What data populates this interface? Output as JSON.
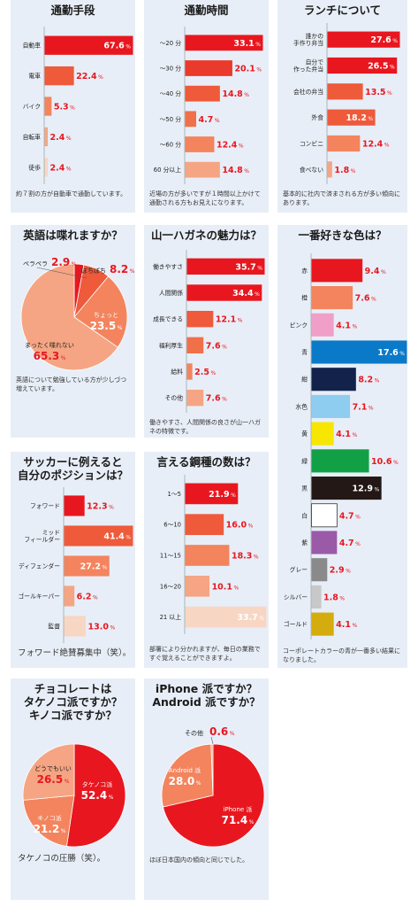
{
  "colors": {
    "background": "#e8eef7",
    "red": "#e8171f",
    "orange": "#ee5a3a",
    "salmon": "#f3845e",
    "light_salmon": "#f5a583",
    "pale": "#f8d6c4"
  },
  "chart_data": [
    {
      "id": "commute",
      "type": "bar",
      "orientation": "horizontal",
      "title": "通勤手段",
      "categories": [
        "自動車",
        "電車",
        "バイク",
        "自転車",
        "徒歩"
      ],
      "values": [
        67.6,
        22.4,
        5.3,
        2.4,
        2.4
      ],
      "value_unit": "%",
      "bar_colors": [
        "#e8171f",
        "#ee5a3a",
        "#f3845e",
        "#f5a583",
        "#f8d6c4"
      ],
      "note": "約７割の方が自動車で通勤しています。"
    },
    {
      "id": "commute_time",
      "type": "bar",
      "orientation": "horizontal",
      "title": "通勤時間",
      "categories": [
        "～20 分",
        "～30 分",
        "～40 分",
        "～50 分",
        "～60 分",
        "60 分以上"
      ],
      "values": [
        33.1,
        20.1,
        14.8,
        4.7,
        12.4,
        14.8
      ],
      "value_unit": "%",
      "bar_colors": [
        "#e8171f",
        "#ea3a2c",
        "#ee5a3a",
        "#f0704a",
        "#f3845e",
        "#f5a583"
      ],
      "note": "近場の方が多いですが１時間以上かけて通勤される方もお見えになります。"
    },
    {
      "id": "lunch",
      "type": "bar",
      "orientation": "horizontal",
      "title": "ランチについて",
      "categories": [
        "誰かの\n手作り弁当",
        "自分で\n作った弁当",
        "会社の弁当",
        "外食",
        "コンビニ",
        "食べない"
      ],
      "values": [
        27.6,
        26.5,
        13.5,
        18.2,
        12.4,
        1.8
      ],
      "value_unit": "%",
      "bar_colors": [
        "#e8171f",
        "#e8171f",
        "#ee5a3a",
        "#ee5a3a",
        "#f3845e",
        "#f5a583"
      ],
      "note": "基本的に社内で済まされる方が多い傾向にあります。"
    },
    {
      "id": "english",
      "type": "pie",
      "title": "英語は喋れますか？",
      "slices": [
        {
          "name": "ペラペラ",
          "value": 2.9,
          "color": "#e8171f"
        },
        {
          "name": "ぼちぼち",
          "value": 8.2,
          "color": "#ee5a3a"
        },
        {
          "name": "ちょっと",
          "value": 23.5,
          "color": "#f3845e"
        },
        {
          "name": "まったく喋れない",
          "value": 65.3,
          "color": "#f5a583"
        }
      ],
      "value_unit": "%",
      "note": "英語について勉強している方が少しづつ増えています。"
    },
    {
      "id": "appeal",
      "type": "bar",
      "orientation": "horizontal",
      "title": "山一ハガネの魅力は？",
      "categories": [
        "働きやすさ",
        "人間関係",
        "成長できる",
        "福利厚生",
        "給料",
        "その他"
      ],
      "values": [
        35.7,
        34.4,
        12.1,
        7.6,
        2.5,
        7.6
      ],
      "value_unit": "%",
      "bar_colors": [
        "#e8171f",
        "#e8171f",
        "#ee5a3a",
        "#f0704a",
        "#f3845e",
        "#f5a583"
      ],
      "note": "働きやすさ、人間関係の良さが山一ハガネの特徴です。"
    },
    {
      "id": "color",
      "type": "bar",
      "orientation": "horizontal",
      "title": "一番好きな色は？",
      "categories": [
        "赤",
        "橙",
        "ピンク",
        "青",
        "紺",
        "水色",
        "黄",
        "緑",
        "黒",
        "白",
        "紫",
        "グレー",
        "シルバー",
        "ゴールド"
      ],
      "values": [
        9.4,
        7.6,
        4.1,
        17.6,
        8.2,
        7.1,
        4.1,
        10.6,
        12.9,
        4.7,
        4.7,
        2.9,
        1.8,
        4.1
      ],
      "value_unit": "%",
      "bar_colors": [
        "#e8171f",
        "#f3845e",
        "#f0a0c8",
        "#0a7ac8",
        "#13224a",
        "#8fcdf0",
        "#f7e600",
        "#12a046",
        "#231815",
        "#ffffff",
        "#9a5aa8",
        "#8a8a8a",
        "#c8c8c8",
        "#d4ac0d"
      ],
      "note": "コーポレートカラーの青が一番多い結果になりました。"
    },
    {
      "id": "soccer",
      "type": "bar",
      "orientation": "horizontal",
      "title": "サッカーに例えると\n自分のポジションは？",
      "categories": [
        "フォワード",
        "ミッド\nフィールダー",
        "ディフェンダー",
        "ゴールキーパー",
        "監督"
      ],
      "values": [
        12.3,
        41.4,
        27.2,
        6.2,
        13.0
      ],
      "value_unit": "%",
      "bar_colors": [
        "#e8171f",
        "#ee5a3a",
        "#f3845e",
        "#f5a583",
        "#f8d6c4"
      ],
      "note": "フォワード絶賛募集中（笑）。"
    },
    {
      "id": "steel",
      "type": "bar",
      "orientation": "horizontal",
      "title": "言える鋼種の数は？",
      "categories": [
        "1～5",
        "6～10",
        "11～15",
        "16～20",
        "21 以上"
      ],
      "values": [
        21.9,
        16.0,
        18.3,
        10.1,
        33.7
      ],
      "value_unit": "%",
      "bar_colors": [
        "#e8171f",
        "#ee5a3a",
        "#f3845e",
        "#f5a583",
        "#f8d6c4"
      ],
      "note": "部署により分かれますが、毎日の業務ですぐ覚えることができますよ。"
    },
    {
      "id": "chocolate",
      "type": "pie",
      "title": "チョコレートは\nタケノコ派ですか？\nキノコ派ですか？",
      "slices": [
        {
          "name": "タケノコ派",
          "value": 52.4,
          "color": "#e8171f"
        },
        {
          "name": "キノコ派",
          "value": 21.2,
          "color": "#f3845e"
        },
        {
          "name": "どうでもいい",
          "value": 26.5,
          "color": "#f5a583"
        }
      ],
      "value_unit": "%",
      "note": "タケノコの圧勝（笑）。"
    },
    {
      "id": "phone",
      "type": "pie",
      "title": "iPhone 派ですか？\nAndroid 派ですか？",
      "slices": [
        {
          "name": "iPhone 派",
          "value": 71.4,
          "color": "#e8171f"
        },
        {
          "name": "Android 派",
          "value": 28.0,
          "color": "#f3845e"
        },
        {
          "name": "その他",
          "value": 0.6,
          "color": "#f5a583"
        }
      ],
      "value_unit": "%",
      "note": "ほぼ日本国内の傾向と同じでした。"
    }
  ]
}
